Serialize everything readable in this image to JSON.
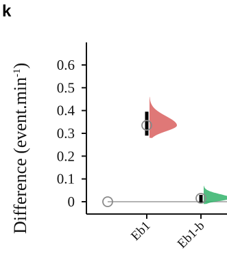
{
  "panel_label": "k",
  "chart_data": {
    "type": "scatter",
    "ylabel": "Difference (event.min",
    "ylabel_superscript": "-1",
    "ylabel_close": ")",
    "ylim": [
      -0.03,
      0.72
    ],
    "yticks": [
      0,
      0.1,
      0.2,
      0.3,
      0.4,
      0.5,
      0.6
    ],
    "ytick_labels": [
      "0",
      "0.1",
      "0.2",
      "0.3",
      "0.4",
      "0.5",
      "0.6"
    ],
    "categories": [
      "Eb1",
      "Eb1-b"
    ],
    "reference_line": 0,
    "groups": [
      {
        "category": "",
        "mean": 0
      },
      {
        "category": "Eb1",
        "mean": 0.335,
        "ci": [
          0.29,
          0.395
        ],
        "distribution_range": [
          0.28,
          0.46
        ],
        "color": "#d9605f"
      },
      {
        "category": "Eb1-b",
        "mean": 0.015,
        "ci": [
          -0.005,
          0.03
        ],
        "distribution_range": [
          -0.01,
          0.07
        ],
        "color": "#33b36b"
      }
    ]
  }
}
